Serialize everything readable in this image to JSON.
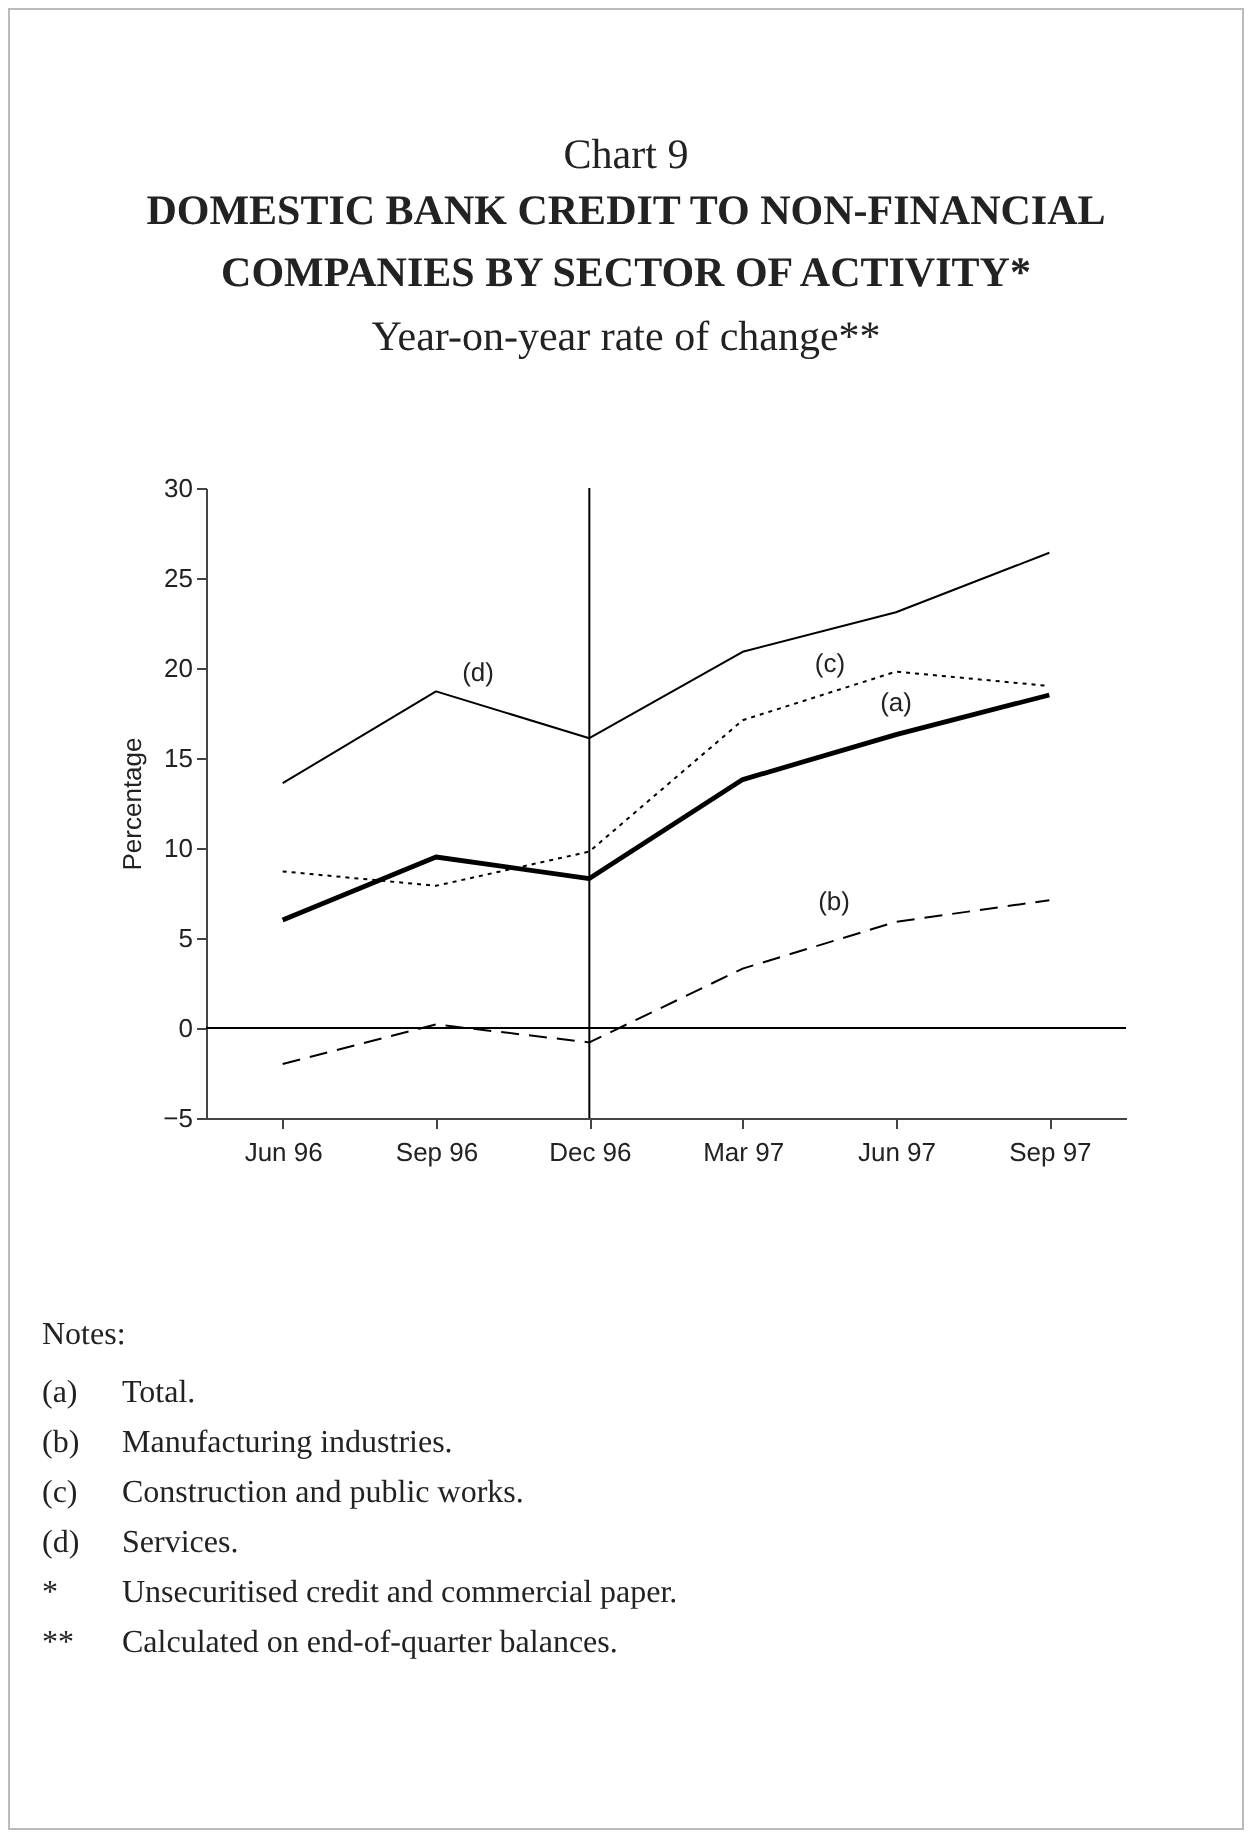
{
  "chart_data": {
    "type": "line",
    "annotations": [
      "Chart 9",
      "Notes:",
      "(a) Total.",
      "(b) Manufacturing industries.",
      "(c) Construction and public works.",
      "(d) Services.",
      "* Unsecuritised credit and commercial paper.",
      "** Calculated on end-of-quarter balances."
    ],
    "title": "DOMESTIC BANK CREDIT TO NON-FINANCIAL COMPANIES BY SECTOR  OF ACTIVITY*",
    "subtitle": "Year-on-year rate of change**",
    "ylabel": "Percentage",
    "categories": [
      "Jun 96",
      "Sep 96",
      "Dec 96",
      "Mar 97",
      "Jun 97",
      "Sep 97"
    ],
    "series": [
      {
        "name": "(a)",
        "color": "#000000",
        "line_style": "solid",
        "values": [
          6,
          9.5,
          8.3,
          13.8,
          16.3,
          18.5
        ]
      },
      {
        "name": "(b)",
        "color": "#000000",
        "line_style": "dashed",
        "values": [
          -2,
          0.2,
          -0.8,
          3.3,
          5.9,
          7.1
        ]
      },
      {
        "name": "(c)",
        "color": "#000000",
        "line_style": "dotted",
        "values": [
          8.7,
          7.9,
          9.8,
          17.1,
          19.8,
          19
        ]
      },
      {
        "name": "(d)",
        "color": "#000000",
        "line_style": "solid",
        "values": [
          13.6,
          18.7,
          16.1,
          20.9,
          23.1,
          26.4
        ]
      }
    ],
    "ylim": [
      -5,
      30
    ],
    "yticks": [
      -5,
      0,
      5,
      10,
      15,
      20,
      25,
      30
    ],
    "ref_lines": [
      {
        "axis": "y",
        "value": 0
      },
      {
        "axis": "x",
        "value": "Dec 96"
      }
    ],
    "grid": false,
    "marker": "none"
  }
}
